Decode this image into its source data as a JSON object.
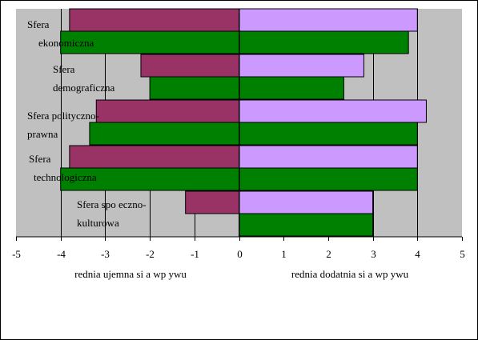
{
  "chart_data": {
    "type": "bar",
    "orientation": "horizontal",
    "xlim": [
      -5,
      5
    ],
    "x_ticks": [
      "-5",
      "-4",
      "-3",
      "-2",
      "-1",
      "0",
      "1",
      "2",
      "3",
      "4",
      "5"
    ],
    "grid": true,
    "categories": [
      [
        "Sfera",
        "ekonomiczna"
      ],
      [
        "Sfera",
        "demograficzna"
      ],
      [
        "Sfera polityczno-",
        "prawna"
      ],
      [
        "Sfera",
        "technologiczna"
      ],
      [
        "Sfera spo eczno-",
        "kulturowa"
      ]
    ],
    "series": [
      {
        "values": [
          -3.8,
          -2.2,
          -3.2,
          -3.8,
          -1.2
        ],
        "color": "#993366"
      },
      {
        "values": [
          4.0,
          2.8,
          4.2,
          4.0,
          3.0
        ],
        "color": "#cc99ff"
      },
      {
        "values": [
          -4.0,
          -2.0,
          -3.35,
          -4.0,
          0
        ],
        "color": "#008000"
      },
      {
        "values": [
          3.8,
          2.35,
          4.0,
          4.0,
          3.0
        ],
        "color": "#008000"
      }
    ],
    "xlabel_left": "rednia ujemna si a wp ywu",
    "xlabel_right": "rednia dodatnia si a wp ywu",
    "plot_background": "#c0c0c0"
  }
}
